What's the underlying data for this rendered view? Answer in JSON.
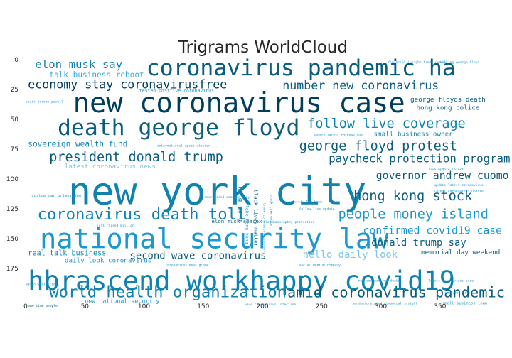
{
  "chart_data": {
    "type": "wordcloud",
    "title": "Trigrams WorldCloud",
    "xlim": [
      0,
      400
    ],
    "ylim": [
      200,
      0
    ],
    "x_ticks": [
      0,
      50,
      100,
      150,
      200,
      250,
      300,
      350
    ],
    "y_ticks": [
      0,
      25,
      50,
      75,
      100,
      125,
      150,
      175
    ],
    "grid": false,
    "colors": [
      "#003f5c",
      "#0b5d7e",
      "#1082b0",
      "#1a98cf",
      "#3aa9da",
      "#7cc7e6"
    ],
    "words": [
      {
        "text": "elon musk say",
        "x": 8,
        "y": 7,
        "size": 8.5,
        "color": "#1082b0",
        "rotate": false
      },
      {
        "text": "talk business reboot",
        "x": 20,
        "y": 15,
        "size": 6,
        "color": "#3aa9da",
        "rotate": false
      },
      {
        "text": "coronavirus pandemic ha",
        "x": 102,
        "y": 13,
        "size": 17,
        "color": "#0b5d7e",
        "rotate": false
      },
      {
        "text": "financial insight breakingnews",
        "x": 306,
        "y": 3,
        "size": 2.5,
        "color": "#1a98cf",
        "rotate": false
      },
      {
        "text": "killing george floyd",
        "x": 350,
        "y": 3,
        "size": 2.5,
        "color": "#1a98cf",
        "rotate": false
      },
      {
        "text": "economy stay coronavirusfree",
        "x": 2,
        "y": 24,
        "size": 9,
        "color": "#003f5c",
        "rotate": false
      },
      {
        "text": "tested positive coronavirus",
        "x": 96,
        "y": 27,
        "size": 3.5,
        "color": "#1a98cf",
        "rotate": false
      },
      {
        "text": "number new coronavirus",
        "x": 217,
        "y": 25,
        "size": 9,
        "color": "#0b5d7e",
        "rotate": false
      },
      {
        "text": "chair jerome powell",
        "x": 0,
        "y": 36,
        "size": 2.5,
        "color": "#1a98cf",
        "rotate": false
      },
      {
        "text": "new coronavirus case",
        "x": 40,
        "y": 44,
        "size": 21,
        "color": "#003f5c",
        "rotate": false
      },
      {
        "text": "george floyds death",
        "x": 325,
        "y": 35,
        "size": 5,
        "color": "#0b5d7e",
        "rotate": false
      },
      {
        "text": "hong kong police",
        "x": 330,
        "y": 42,
        "size": 5,
        "color": "#0b5d7e",
        "rotate": false
      },
      {
        "text": "death george floyd",
        "x": 27,
        "y": 63,
        "size": 17,
        "color": "#0b5d7e",
        "rotate": false
      },
      {
        "text": "follow live coverage",
        "x": 238,
        "y": 57,
        "size": 10,
        "color": "#1082b0",
        "rotate": false
      },
      {
        "text": "update latest coronavirus",
        "x": 243,
        "y": 64,
        "size": 2.5,
        "color": "#1a98cf",
        "rotate": false
      },
      {
        "text": "small business owner",
        "x": 294,
        "y": 64,
        "size": 5,
        "color": "#1082b0",
        "rotate": false
      },
      {
        "text": "sovereign wealth fund",
        "x": 2,
        "y": 73,
        "size": 6,
        "color": "#1082b0",
        "rotate": false
      },
      {
        "text": "international space station",
        "x": 111,
        "y": 73,
        "size": 2.5,
        "color": "#1a98cf",
        "rotate": false
      },
      {
        "text": "george floyd protest",
        "x": 231,
        "y": 76,
        "size": 10,
        "color": "#0b5d7e",
        "rotate": false
      },
      {
        "text": "president donald trump",
        "x": 20,
        "y": 85,
        "size": 10,
        "color": "#0b5d7e",
        "rotate": false
      },
      {
        "text": "paycheck protection program",
        "x": 256,
        "y": 86,
        "size": 8.5,
        "color": "#0b5d7e",
        "rotate": false
      },
      {
        "text": "latest coronavirus news",
        "x": 33,
        "y": 91,
        "size": 5,
        "color": "#7cc7e6",
        "rotate": false
      },
      {
        "text": "live update latest",
        "x": 340,
        "y": 93,
        "size": 2.5,
        "color": "#1a98cf",
        "rotate": false
      },
      {
        "text": "governor andrew cuomo",
        "x": 296,
        "y": 100,
        "size": 8,
        "color": "#0b5d7e",
        "rotate": false
      },
      {
        "text": "new york city",
        "x": 36,
        "y": 121,
        "size": 29,
        "color": "#1082b0",
        "rotate": false
      },
      {
        "text": "update latest coronavirus",
        "x": 345,
        "y": 106,
        "size": 2.5,
        "color": "#1a98cf",
        "rotate": false
      },
      {
        "text": "latest coronavirus update",
        "x": 345,
        "y": 111,
        "size": 2.5,
        "color": "#1a98cf",
        "rotate": false
      },
      {
        "text": "custom car primevideo",
        "x": 5,
        "y": 115,
        "size": 3,
        "color": "#1a98cf",
        "rotate": false
      },
      {
        "text": "sacrificed economy stay",
        "x": 151,
        "y": 116,
        "size": 2.5,
        "color": "#1a98cf",
        "rotate": false
      },
      {
        "text": "hong kong stock",
        "x": 277,
        "y": 118,
        "size": 10,
        "color": "#0b5d7e",
        "rotate": false
      },
      {
        "text": "security law hong",
        "x": 222,
        "y": 120,
        "size": 2.5,
        "color": "#1a98cf",
        "rotate": false
      },
      {
        "text": "follow live update",
        "x": 231,
        "y": 126,
        "size": 2.5,
        "color": "#1a98cf",
        "rotate": false
      },
      {
        "text": "coronavirus death toll",
        "x": 10,
        "y": 134,
        "size": 12,
        "color": "#1082b0",
        "rotate": false
      },
      {
        "text": "people money island",
        "x": 264,
        "y": 133,
        "size": 10,
        "color": "#1a98cf",
        "rotate": false
      },
      {
        "text": "elon musk spacex",
        "x": 157,
        "y": 137,
        "size": 4,
        "color": "#0b5d7e",
        "rotate": false
      },
      {
        "text": "filed bankruptcy protection",
        "x": 199,
        "y": 137,
        "size": 2.5,
        "color": "#1a98cf",
        "rotate": false
      },
      {
        "text": "just raised million",
        "x": 60,
        "y": 140,
        "size": 2.5,
        "color": "#1a98cf",
        "rotate": false
      },
      {
        "text": "national security law",
        "x": 12,
        "y": 158,
        "size": 21,
        "color": "#1a98cf",
        "rotate": false
      },
      {
        "text": "confirmed covid19 case",
        "x": 285,
        "y": 146,
        "size": 8,
        "color": "#1a98cf",
        "rotate": false
      },
      {
        "text": "donald trump say",
        "x": 292,
        "y": 156,
        "size": 7.5,
        "color": "#0b5d7e",
        "rotate": false
      },
      {
        "text": "real talk business",
        "x": 2,
        "y": 164,
        "size": 5.5,
        "color": "#1082b0",
        "rotate": false
      },
      {
        "text": "second wave coronavirus",
        "x": 88,
        "y": 167,
        "size": 7.5,
        "color": "#0b5d7e",
        "rotate": false
      },
      {
        "text": "hello daily look",
        "x": 234,
        "y": 166,
        "size": 7.5,
        "color": "#7cc7e6",
        "rotate": false
      },
      {
        "text": "memorial day weekend",
        "x": 334,
        "y": 163,
        "size": 5,
        "color": "#0b5d7e",
        "rotate": false
      },
      {
        "text": "daily look coronavirus",
        "x": 33,
        "y": 170,
        "size": 5,
        "color": "#1a98cf",
        "rotate": false
      },
      {
        "text": "coronavirus news globe",
        "x": 118,
        "y": 173,
        "size": 2.5,
        "color": "#1a98cf",
        "rotate": false
      },
      {
        "text": "social medium company",
        "x": 231,
        "y": 173,
        "size": 2.5,
        "color": "#1a98cf",
        "rotate": false
      },
      {
        "text": "hbrascend workhappy covid19",
        "x": 2,
        "y": 193,
        "size": 20,
        "color": "#1082b0",
        "rotate": false
      },
      {
        "text": "latest coronavirus case",
        "x": 340,
        "y": 186,
        "size": 2.5,
        "color": "#1a98cf",
        "rotate": false
      },
      {
        "text": "new coronavirus death",
        "x": 281,
        "y": 186,
        "size": 2.5,
        "color": "#1a98cf",
        "rotate": false
      },
      {
        "text": "watch wall street",
        "x": 0,
        "y": 189,
        "size": 2.5,
        "color": "#1a98cf",
        "rotate": false
      },
      {
        "text": "world health organization",
        "x": 20,
        "y": 199,
        "size": 12,
        "color": "#1082b0",
        "rotate": false
      },
      {
        "text": "amid coronavirus pandemic",
        "x": 221,
        "y": 199,
        "size": 11,
        "color": "#0b5d7e",
        "rotate": false
      },
      {
        "text": "new york city",
        "x": 354,
        "y": 196,
        "size": 2.5,
        "color": "#1a98cf",
        "rotate": false
      },
      {
        "text": "new national security",
        "x": 50,
        "y": 204,
        "size": 4.5,
        "color": "#1a98cf",
        "rotate": false
      },
      {
        "text": "one time people",
        "x": 2,
        "y": 207,
        "size": 2.5,
        "color": "#0b5d7e",
        "rotate": false
      },
      {
        "text": "wave coronavirus infection",
        "x": 185,
        "y": 206,
        "size": 2.5,
        "color": "#1a98cf",
        "rotate": false
      },
      {
        "text": "pandemicrelated financial insight",
        "x": 276,
        "y": 205,
        "size": 2.5,
        "color": "#1a98cf",
        "rotate": false
      },
      {
        "text": "small business loan",
        "x": 352,
        "y": 205,
        "size": 3,
        "color": "#1a98cf",
        "rotate": false
      },
      {
        "text": "hong kong",
        "x": 180,
        "y": 106,
        "size": 5,
        "color": "#1082b0",
        "rotate": true
      },
      {
        "text": "black lives matter",
        "x": 193,
        "y": 109,
        "size": 4,
        "color": "#0b5d7e",
        "rotate": true
      },
      {
        "text": "lake hong kong",
        "x": 186,
        "y": 122,
        "size": 3.5,
        "color": "#1a98cf",
        "rotate": true
      },
      {
        "text": "trade coronavirus economy",
        "x": 201,
        "y": 120,
        "size": 2.5,
        "color": "#1a98cf",
        "rotate": true
      },
      {
        "text": "black live matter",
        "x": 207,
        "y": 113,
        "size": 2.5,
        "color": "#1082b0",
        "rotate": true
      }
    ]
  }
}
